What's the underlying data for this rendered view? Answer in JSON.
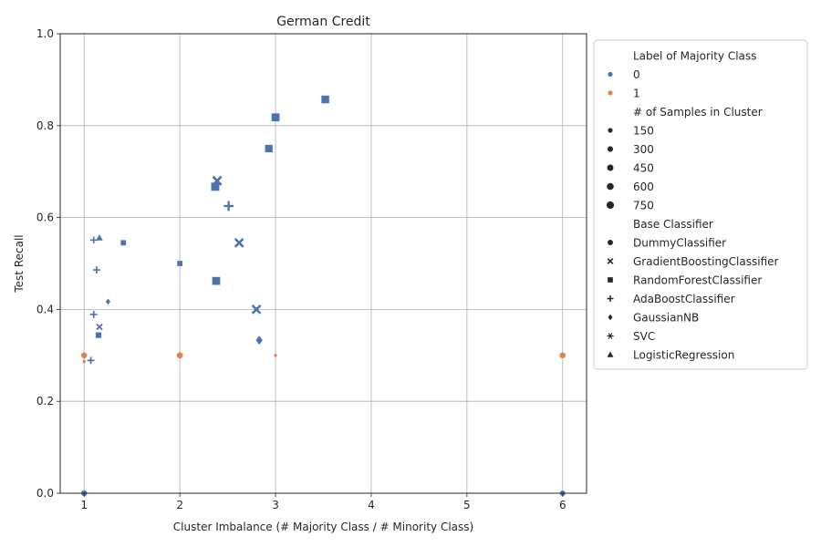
{
  "chart_data": {
    "type": "scatter",
    "title": "German Credit",
    "xlabel": "Cluster Imbalance (# Majority Class / # Minority Class)",
    "ylabel": "Test Recall",
    "xlim": [
      0.75,
      6.25
    ],
    "ylim": [
      0,
      1
    ],
    "xticks": [
      1,
      2,
      3,
      4,
      5,
      6
    ],
    "xtick_labels": [
      "1",
      "2",
      "3",
      "4",
      "5",
      "6"
    ],
    "yticks": [
      0,
      0.2,
      0.4,
      0.6,
      0.8,
      1.0
    ],
    "ytick_labels": [
      "0.0",
      "0.2",
      "0.4",
      "0.6",
      "0.8",
      "1.0"
    ],
    "grid": true,
    "legend_position": "outside-right",
    "colors": {
      "0": "#4c72b0",
      "1": "#dd8452"
    },
    "legend": {
      "hue_title": "Label of Majority Class",
      "hue": [
        {
          "label": "0",
          "color": "#4c72b0"
        },
        {
          "label": "1",
          "color": "#dd8452"
        }
      ],
      "size_title": "# of Samples in Cluster",
      "size": [
        {
          "label": "150",
          "value": 150
        },
        {
          "label": "300",
          "value": 300
        },
        {
          "label": "450",
          "value": 450
        },
        {
          "label": "600",
          "value": 600
        },
        {
          "label": "750",
          "value": 750
        }
      ],
      "style_title": "Base Classifier",
      "style": [
        {
          "label": "DummyClassifier",
          "marker": "circle"
        },
        {
          "label": "GradientBoostingClassifier",
          "marker": "x"
        },
        {
          "label": "RandomForestClassifier",
          "marker": "square"
        },
        {
          "label": "AdaBoostClassifier",
          "marker": "plus"
        },
        {
          "label": "GaussianNB",
          "marker": "diamond"
        },
        {
          "label": "SVC",
          "marker": "star"
        },
        {
          "label": "LogisticRegression",
          "marker": "triangle"
        }
      ]
    },
    "points": [
      {
        "x": 1.0,
        "y": 0.3,
        "label": "1",
        "marker": "circle",
        "samples": 200
      },
      {
        "x": 1.0,
        "y": 0.287,
        "label": "1",
        "marker": "diamond",
        "samples": 60
      },
      {
        "x": 2.0,
        "y": 0.3,
        "label": "1",
        "marker": "circle",
        "samples": 250
      },
      {
        "x": 3.0,
        "y": 0.3,
        "label": "1",
        "marker": "diamond",
        "samples": 40
      },
      {
        "x": 6.0,
        "y": 0.3,
        "label": "1",
        "marker": "circle",
        "samples": 200
      },
      {
        "x": 1.0,
        "y": 0.0,
        "label": "0",
        "marker": "circle",
        "samples": 200
      },
      {
        "x": 6.0,
        "y": 0.0,
        "label": "0",
        "marker": "circle",
        "samples": 150
      },
      {
        "x": 3.52,
        "y": 0.857,
        "label": "0",
        "marker": "square",
        "samples": 600
      },
      {
        "x": 3.0,
        "y": 0.818,
        "label": "0",
        "marker": "square",
        "samples": 650
      },
      {
        "x": 2.93,
        "y": 0.75,
        "label": "0",
        "marker": "square",
        "samples": 550
      },
      {
        "x": 2.39,
        "y": 0.68,
        "label": "0",
        "marker": "x",
        "samples": 750
      },
      {
        "x": 2.37,
        "y": 0.667,
        "label": "0",
        "marker": "square",
        "samples": 700
      },
      {
        "x": 2.51,
        "y": 0.625,
        "label": "0",
        "marker": "plus",
        "samples": 700
      },
      {
        "x": 2.62,
        "y": 0.545,
        "label": "0",
        "marker": "x",
        "samples": 700
      },
      {
        "x": 2.38,
        "y": 0.462,
        "label": "0",
        "marker": "square",
        "samples": 650
      },
      {
        "x": 2.8,
        "y": 0.4,
        "label": "0",
        "marker": "x",
        "samples": 700
      },
      {
        "x": 2.83,
        "y": 0.333,
        "label": "0",
        "marker": "diamond",
        "samples": 600
      },
      {
        "x": 2.0,
        "y": 0.5,
        "label": "0",
        "marker": "square",
        "samples": 150
      },
      {
        "x": 1.1,
        "y": 0.551,
        "label": "0",
        "marker": "plus",
        "samples": 200
      },
      {
        "x": 1.16,
        "y": 0.556,
        "label": "0",
        "marker": "triangle",
        "samples": 200
      },
      {
        "x": 1.41,
        "y": 0.545,
        "label": "0",
        "marker": "square",
        "samples": 150
      },
      {
        "x": 1.13,
        "y": 0.486,
        "label": "0",
        "marker": "plus",
        "samples": 250
      },
      {
        "x": 1.25,
        "y": 0.417,
        "label": "0",
        "marker": "diamond",
        "samples": 150
      },
      {
        "x": 1.1,
        "y": 0.389,
        "label": "0",
        "marker": "plus",
        "samples": 250
      },
      {
        "x": 1.16,
        "y": 0.362,
        "label": "0",
        "marker": "x",
        "samples": 200
      },
      {
        "x": 1.15,
        "y": 0.344,
        "label": "0",
        "marker": "square",
        "samples": 200
      },
      {
        "x": 1.07,
        "y": 0.289,
        "label": "0",
        "marker": "plus",
        "samples": 250
      }
    ]
  }
}
